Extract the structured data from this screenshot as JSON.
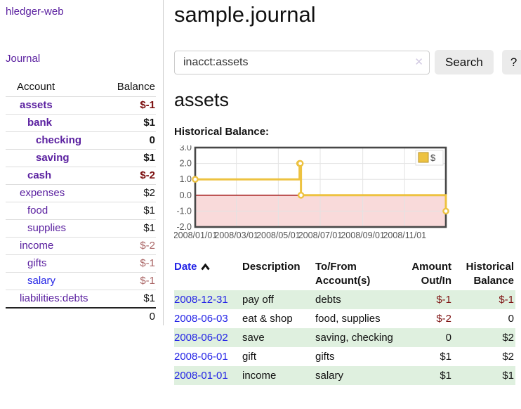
{
  "brand": "hledger-web",
  "nav": {
    "journal": "Journal"
  },
  "page": {
    "title": "sample.journal",
    "heading": "assets",
    "chart_label": "Historical Balance:"
  },
  "search": {
    "value": "inacct:assets",
    "clear_icon": "✕",
    "button": "Search",
    "help_button": "?"
  },
  "sidebar": {
    "col_account": "Account",
    "col_balance": "Balance",
    "rows": [
      {
        "name": "assets",
        "balance": "$-1"
      },
      {
        "name": "bank",
        "balance": "$1"
      },
      {
        "name": "checking",
        "balance": "0"
      },
      {
        "name": "saving",
        "balance": "$1"
      },
      {
        "name": "cash",
        "balance": "$-2"
      },
      {
        "name": "expenses",
        "balance": "$2"
      },
      {
        "name": "food",
        "balance": "$1"
      },
      {
        "name": "supplies",
        "balance": "$1"
      },
      {
        "name": "income",
        "balance": "$-2"
      },
      {
        "name": "gifts",
        "balance": "$-1"
      },
      {
        "name": "salary",
        "balance": "$-1"
      },
      {
        "name": "liabilities:debts",
        "balance": "$1"
      }
    ],
    "total": "0"
  },
  "chart_data": {
    "type": "line",
    "step": true,
    "title": "Historical Balance",
    "series": [
      {
        "name": "$",
        "color": "#edc240",
        "points": [
          [
            "2008-01-01",
            1
          ],
          [
            "2008-06-01",
            2
          ],
          [
            "2008-06-02",
            2
          ],
          [
            "2008-06-03",
            0
          ],
          [
            "2008-12-31",
            -1
          ]
        ]
      }
    ],
    "x_ticks": [
      "2008/01/01",
      "2008/03/01",
      "2008/05/01",
      "2008/07/01",
      "2008/09/01",
      "2008/11/01"
    ],
    "y_ticks": [
      3.0,
      2.0,
      1.0,
      0.0,
      -1.0,
      -2.0
    ],
    "xlim": [
      "2008-01-01",
      "2008-12-31"
    ],
    "ylim": [
      -2,
      3
    ],
    "grid": true,
    "legend": {
      "label": "$",
      "position": "top-right"
    },
    "negative_region_color": "#f9dada",
    "zero_line_color": "#990000",
    "grid_color": "#e3e3e3",
    "border_color": "#474747",
    "tick_color": "#545454"
  },
  "register": {
    "headers": {
      "date": "Date",
      "description": "Description",
      "account_1": "To/From",
      "account_2": "Account(s)",
      "amount_1": "Amount",
      "amount_2": "Out/In",
      "balance_1": "Historical",
      "balance_2": "Balance"
    },
    "rows": [
      {
        "date": "2008-12-31",
        "description": "pay off",
        "account": "debts",
        "amount": "$-1",
        "balance": "$-1"
      },
      {
        "date": "2008-06-03",
        "description": "eat & shop",
        "account": "food, supplies",
        "amount": "$-2",
        "balance": "0"
      },
      {
        "date": "2008-06-02",
        "description": "save",
        "account": "saving, checking",
        "amount": "0",
        "balance": "$2"
      },
      {
        "date": "2008-06-01",
        "description": "gift",
        "account": "gifts",
        "amount": "$1",
        "balance": "$2"
      },
      {
        "date": "2008-01-01",
        "description": "income",
        "account": "salary",
        "amount": "$1",
        "balance": "$1"
      }
    ]
  }
}
